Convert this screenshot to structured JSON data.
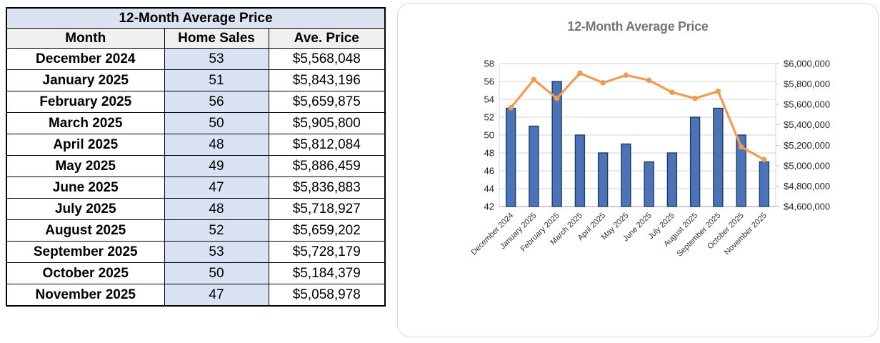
{
  "table": {
    "title": "12-Month Average Price",
    "columns": [
      "Month",
      "Home Sales",
      "Ave. Price"
    ],
    "rows": [
      {
        "month": "December 2024",
        "sales": "53",
        "price": "$5,568,048"
      },
      {
        "month": "January 2025",
        "sales": "51",
        "price": "$5,843,196"
      },
      {
        "month": "February 2025",
        "sales": "56",
        "price": "$5,659,875"
      },
      {
        "month": "March 2025",
        "sales": "50",
        "price": "$5,905,800"
      },
      {
        "month": "April 2025",
        "sales": "48",
        "price": "$5,812,084"
      },
      {
        "month": "May 2025",
        "sales": "49",
        "price": "$5,886,459"
      },
      {
        "month": "June 2025",
        "sales": "47",
        "price": "$5,836,883"
      },
      {
        "month": "July 2025",
        "sales": "48",
        "price": "$5,718,927"
      },
      {
        "month": "August 2025",
        "sales": "52",
        "price": "$5,659,202"
      },
      {
        "month": "September 2025",
        "sales": "53",
        "price": "$5,728,179"
      },
      {
        "month": "October 2025",
        "sales": "50",
        "price": "$5,184,379"
      },
      {
        "month": "November 2025",
        "sales": "47",
        "price": "$5,058,978"
      }
    ]
  },
  "chart_data": {
    "type": "bar",
    "title": "12-Month Average Price",
    "categories": [
      "December 2024",
      "January 2025",
      "February 2025",
      "March 2025",
      "April 2025",
      "May 2025",
      "June 2025",
      "July 2025",
      "August 2025",
      "September 2025",
      "October 2025",
      "November 2025"
    ],
    "series": [
      {
        "name": "Home Sales",
        "type": "bar",
        "axis": "left",
        "values": [
          53,
          51,
          56,
          50,
          48,
          49,
          47,
          48,
          52,
          53,
          50,
          47
        ]
      },
      {
        "name": "Ave. Price",
        "type": "line",
        "axis": "right",
        "values": [
          5568048,
          5843196,
          5659875,
          5905800,
          5812084,
          5886459,
          5836883,
          5718927,
          5659202,
          5728179,
          5184379,
          5058978
        ]
      }
    ],
    "left_axis": {
      "min": 42,
      "max": 58,
      "step": 2
    },
    "right_axis": {
      "min": 4600000,
      "max": 6000000,
      "step": 200000,
      "prefix": "$"
    },
    "grid": true,
    "legend": "none",
    "x_label_rotation": -45
  },
  "colors": {
    "bar_fill": "#4A73B8",
    "bar_border": "#1F3C63",
    "line": "#EE9C54",
    "chart_title": "#767676",
    "gridline": "#D6D6D6",
    "plot_edge": "#D6D6D6",
    "axis_line": "#9A9A9A",
    "tick": "#BFBFBF",
    "axis_text": "#262626",
    "x_label_text": "#333333",
    "table_title_bg": "#DBE3F1",
    "table_header_bg": "#F0F0F0",
    "sales_col_bg": "#DAE3F3"
  }
}
